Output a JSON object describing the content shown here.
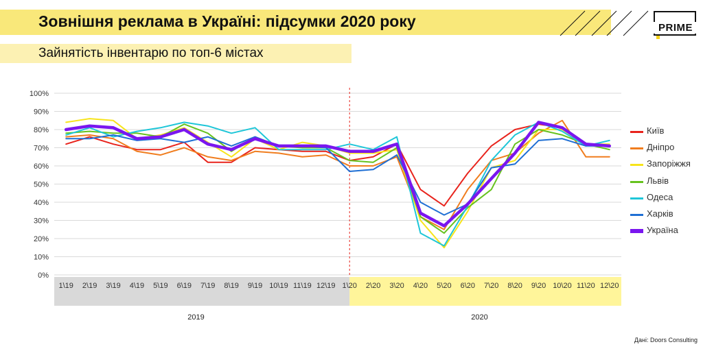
{
  "header": {
    "title": "Зовнішня реклама в Україні: підсумки 2020 року",
    "subtitle": "Зайнятість інвентарю по топ-6 містах",
    "logo": "PRIME"
  },
  "source": "Дані: Doors Consulting",
  "colors": {
    "accent_yellow": "#f9e87a",
    "band_2019": "#d9d9d9",
    "band_2020": "#fff59a",
    "divider": "#e8231c"
  },
  "chart_data": {
    "type": "line",
    "title": "",
    "xlabel": "",
    "ylabel": "",
    "ylim": [
      0,
      100
    ],
    "y_ticks": [
      "0%",
      "10%",
      "20%",
      "30%",
      "40%",
      "50%",
      "60%",
      "70%",
      "80%",
      "90%",
      "100%"
    ],
    "grid": true,
    "legend": "right",
    "categories": [
      "1\\19",
      "2\\19",
      "3\\19",
      "4\\19",
      "5\\19",
      "6\\19",
      "7\\19",
      "8\\19",
      "9\\19",
      "10\\19",
      "11\\19",
      "12\\19",
      "1\\20",
      "2\\20",
      "3\\20",
      "4\\20",
      "5\\20",
      "6\\20",
      "7\\20",
      "8\\20",
      "9\\20",
      "10\\20",
      "11\\20",
      "12\\20"
    ],
    "year_groups": [
      {
        "label": "2019",
        "from": 0,
        "to": 11
      },
      {
        "label": "2020",
        "from": 12,
        "to": 23
      }
    ],
    "series": [
      {
        "name": "Київ",
        "color": "#e8231c",
        "values": [
          72,
          76,
          72,
          69,
          69,
          73,
          62,
          62,
          70,
          69,
          68,
          68,
          63,
          65,
          72,
          47,
          38,
          56,
          71,
          80,
          83,
          81,
          72,
          71
        ]
      },
      {
        "name": "Дніпро",
        "color": "#f07d1e",
        "values": [
          76,
          77,
          75,
          68,
          66,
          70,
          65,
          63,
          68,
          67,
          65,
          66,
          60,
          60,
          65,
          32,
          25,
          47,
          63,
          67,
          78,
          85,
          65,
          65
        ]
      },
      {
        "name": "Запоріжжя",
        "color": "#f7e41a",
        "values": [
          84,
          86,
          85,
          75,
          77,
          81,
          73,
          65,
          75,
          69,
          73,
          71,
          67,
          67,
          69,
          30,
          15,
          35,
          59,
          63,
          80,
          80,
          72,
          72
        ]
      },
      {
        "name": "Львів",
        "color": "#66c21e",
        "values": [
          78,
          79,
          78,
          78,
          76,
          83,
          78,
          68,
          76,
          71,
          70,
          70,
          63,
          62,
          70,
          32,
          23,
          37,
          47,
          72,
          80,
          77,
          72,
          69
        ]
      },
      {
        "name": "Одеса",
        "color": "#1ec6d8",
        "values": [
          77,
          81,
          76,
          79,
          81,
          84,
          82,
          78,
          81,
          69,
          69,
          69,
          72,
          69,
          76,
          23,
          16,
          38,
          63,
          77,
          84,
          79,
          71,
          74
        ]
      },
      {
        "name": "Харків",
        "color": "#1f6fd4",
        "values": [
          75,
          75,
          77,
          74,
          75,
          73,
          76,
          71,
          76,
          71,
          71,
          70,
          57,
          58,
          66,
          40,
          33,
          39,
          59,
          61,
          74,
          75,
          71,
          71
        ]
      },
      {
        "name": "Україна",
        "color": "#7a16ef",
        "bold": true,
        "values": [
          80,
          82,
          81,
          75,
          76,
          80,
          72,
          69,
          75,
          71,
          71,
          71,
          68,
          68,
          72,
          34,
          27,
          39,
          53,
          67,
          84,
          81,
          72,
          71
        ]
      }
    ]
  }
}
